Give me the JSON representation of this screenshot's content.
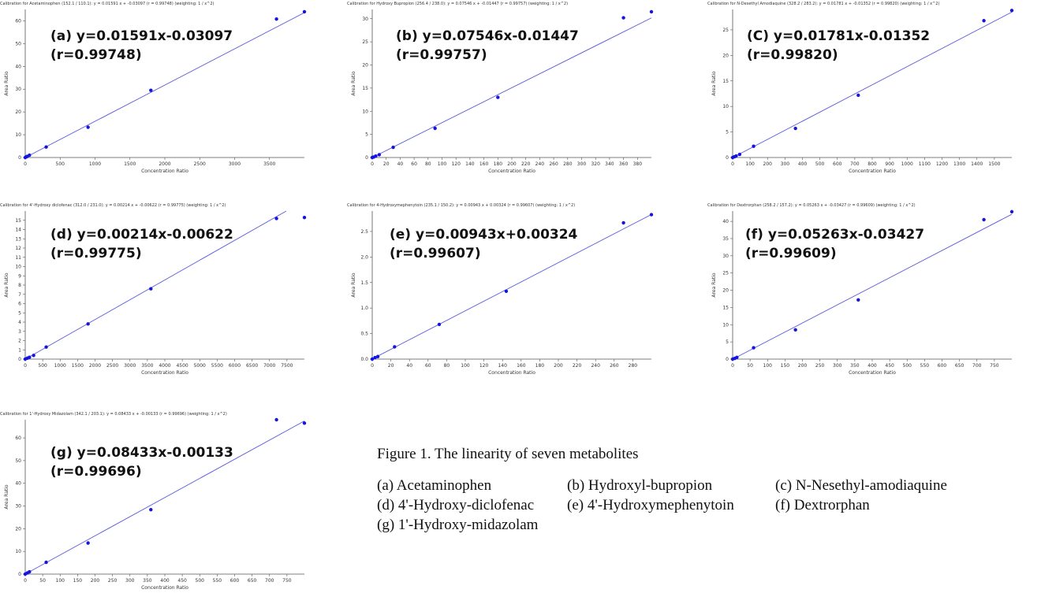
{
  "chart_data": [
    {
      "type": "scatter",
      "panel_label": "(a)",
      "caption": "Calibration for Acetaminophen (152.1 / 110.1): y = 0.01591 x + -0.03097 (r = 0.99748) (weighting: 1 / x^2)",
      "equation": "(a) y=0.01591x-0.03097",
      "r_text": "(r=0.99748)",
      "slope": 0.01591,
      "intercept": -0.03097,
      "xlabel": "Concentration Ratio",
      "ylabel": "Area Ratio",
      "xlim": [
        0,
        4000
      ],
      "ylim": [
        0,
        65
      ],
      "xticks": [
        0,
        500,
        1000,
        1500,
        2000,
        2500,
        3000,
        3500
      ],
      "yticks": [
        0,
        10,
        20,
        30,
        40,
        50,
        60
      ],
      "points": [
        [
          0,
          0
        ],
        [
          15,
          0.3
        ],
        [
          30,
          0.5
        ],
        [
          60,
          1.0
        ],
        [
          300,
          4.6
        ],
        [
          900,
          13.3
        ],
        [
          1800,
          29.5
        ],
        [
          3600,
          60.8
        ],
        [
          4000,
          64.0
        ]
      ]
    },
    {
      "type": "scatter",
      "panel_label": "(b)",
      "caption": "Calibration for Hydroxy Bupropion (256.4 / 238.0): y = 0.07546 x + -0.01447 (r = 0.99757) (weighting: 1 / x^2)",
      "equation": "(b) y=0.07546x-0.01447",
      "r_text": "(r=0.99757)",
      "slope": 0.07546,
      "intercept": -0.01447,
      "xlabel": "Concentration Ratio",
      "ylabel": "Area Ratio",
      "xlim": [
        0,
        400
      ],
      "ylim": [
        0,
        32
      ],
      "xticks": [
        0,
        20,
        40,
        60,
        80,
        100,
        120,
        140,
        160,
        180,
        200,
        220,
        240,
        260,
        280,
        300,
        320,
        340,
        360,
        380
      ],
      "yticks": [
        0,
        5,
        10,
        15,
        20,
        25,
        30
      ],
      "points": [
        [
          0,
          0
        ],
        [
          2,
          0.1
        ],
        [
          5,
          0.3
        ],
        [
          10,
          0.6
        ],
        [
          30,
          2.2
        ],
        [
          90,
          6.3
        ],
        [
          180,
          13.0
        ],
        [
          360,
          30.2
        ],
        [
          400,
          31.5
        ]
      ]
    },
    {
      "type": "scatter",
      "panel_label": "(C)",
      "caption": "Calibration for N-Desethyl Amodiaquine (328.2 / 283.2): y = 0.01781 x + -0.01352 (r = 0.99820) (weighting: 1 / x^2)",
      "equation": "(C) y=0.01781x-0.01352",
      "r_text": "(r=0.99820)",
      "slope": 0.01781,
      "intercept": -0.01352,
      "xlabel": "Concentration Ratio",
      "ylabel": "Area Ratio",
      "xlim": [
        0,
        1600
      ],
      "ylim": [
        0,
        29
      ],
      "xticks": [
        0,
        100,
        200,
        300,
        400,
        500,
        600,
        700,
        800,
        900,
        1000,
        1100,
        1200,
        1300,
        1400,
        1500
      ],
      "yticks": [
        0,
        5,
        10,
        15,
        20,
        25
      ],
      "points": [
        [
          0,
          0
        ],
        [
          10,
          0.15
        ],
        [
          20,
          0.3
        ],
        [
          40,
          0.6
        ],
        [
          120,
          2.2
        ],
        [
          360,
          5.7
        ],
        [
          720,
          12.2
        ],
        [
          1440,
          26.8
        ],
        [
          1600,
          28.8
        ]
      ]
    },
    {
      "type": "scatter",
      "panel_label": "(d)",
      "caption": "Calibration for 4'-Hydroxy diclofenac (312.0 / 231.0): y = 0.00214 x + -0.00622 (r = 0.99775) (weighting: 1 / x^2)",
      "equation": "(d) y=0.00214x-0.00622",
      "r_text": "(r=0.99775)",
      "slope": 0.00214,
      "intercept": -0.00622,
      "xlabel": "Concentration Ratio",
      "ylabel": "Area Ratio",
      "xlim": [
        0,
        8000
      ],
      "ylim": [
        0,
        16
      ],
      "xticks": [
        0,
        500,
        1000,
        1500,
        2000,
        2500,
        3000,
        3500,
        4000,
        4500,
        5000,
        5500,
        6000,
        6500,
        7000,
        7500
      ],
      "yticks": [
        0,
        1,
        2,
        3,
        4,
        5,
        6,
        7,
        8,
        9,
        10,
        11,
        12,
        13,
        14,
        15
      ],
      "points": [
        [
          0,
          0
        ],
        [
          60,
          0.1
        ],
        [
          120,
          0.2
        ],
        [
          240,
          0.4
        ],
        [
          600,
          1.3
        ],
        [
          1800,
          3.8
        ],
        [
          3600,
          7.6
        ],
        [
          7200,
          15.2
        ],
        [
          8000,
          15.3
        ]
      ]
    },
    {
      "type": "scatter",
      "panel_label": "(e)",
      "caption": "Calibration for 4-Hydroxymephenytoin (235.1 / 150.2): y = 0.00943 x + 0.00324 (r = 0.99607) (weighting: 1 / x^2)",
      "equation": "(e) y=0.00943x+0.00324",
      "r_text": "(r=0.99607)",
      "slope": 0.00943,
      "intercept": 0.00324,
      "xlabel": "Concentration Ratio",
      "ylabel": "Area Ratio",
      "xlim": [
        0,
        300
      ],
      "ylim": [
        0,
        2.9
      ],
      "xticks": [
        0,
        20,
        40,
        60,
        80,
        100,
        120,
        140,
        160,
        180,
        200,
        220,
        240,
        260,
        280
      ],
      "yticks": [
        0.0,
        0.5,
        1.0,
        1.5,
        2.0,
        2.5
      ],
      "points": [
        [
          0,
          0
        ],
        [
          3,
          0.03
        ],
        [
          6,
          0.05
        ],
        [
          24,
          0.24
        ],
        [
          72,
          0.68
        ],
        [
          144,
          1.33
        ],
        [
          270,
          2.67
        ],
        [
          300,
          2.83
        ]
      ]
    },
    {
      "type": "scatter",
      "panel_label": "(f)",
      "caption": "Calibration for Dextrorphan (258.2 / 157.2): y = 0.05263 x + -0.03427 (r = 0.99609) (weighting: 1 / x^2)",
      "equation": "(f) y=0.05263x-0.03427",
      "r_text": "(r=0.99609)",
      "slope": 0.05263,
      "intercept": -0.03427,
      "xlabel": "Concentration Ratio",
      "ylabel": "Area Ratio",
      "xlim": [
        0,
        800
      ],
      "ylim": [
        0,
        43
      ],
      "xticks": [
        0,
        50,
        100,
        150,
        200,
        250,
        300,
        350,
        400,
        450,
        500,
        550,
        600,
        650,
        700,
        750
      ],
      "yticks": [
        0,
        5,
        10,
        15,
        20,
        25,
        30,
        35,
        40
      ],
      "points": [
        [
          0,
          0
        ],
        [
          6,
          0.2
        ],
        [
          12,
          0.5
        ],
        [
          60,
          3.3
        ],
        [
          180,
          8.5
        ],
        [
          360,
          17.2
        ],
        [
          720,
          40.5
        ],
        [
          800,
          42.8
        ]
      ]
    },
    {
      "type": "scatter",
      "panel_label": "(g)",
      "caption": "Calibration for 1'-Hydroxy Midazolam (342.1 / 203.1): y = 0.08433 x + -0.00133 (r = 0.99696) (weighting: 1 / x^2)",
      "equation": "(g) y=0.08433x-0.00133",
      "r_text": "(r=0.99696)",
      "slope": 0.08433,
      "intercept": -0.00133,
      "xlabel": "Concentration Ratio",
      "ylabel": "Area Ratio",
      "xlim": [
        0,
        800
      ],
      "ylim": [
        0,
        68
      ],
      "xticks": [
        0,
        50,
        100,
        150,
        200,
        250,
        300,
        350,
        400,
        450,
        500,
        550,
        600,
        650,
        700,
        750
      ],
      "yticks": [
        0,
        10,
        20,
        30,
        40,
        50,
        60
      ],
      "points": [
        [
          0,
          0
        ],
        [
          6,
          0.5
        ],
        [
          12,
          1.0
        ],
        [
          60,
          5.2
        ],
        [
          180,
          13.7
        ],
        [
          360,
          28.4
        ],
        [
          720,
          68.0
        ],
        [
          800,
          66.5
        ]
      ]
    }
  ],
  "figure": {
    "title": "Figure 1. The linearity of seven metabolites",
    "legend": [
      [
        "(a) Acetaminophen",
        "(b) Hydroxyl-bupropion",
        "(c) N-Nesethyl-amodiaquine"
      ],
      [
        "(d) 4'-Hydroxy-diclofenac",
        "(e) 4'-Hydroxymephenytoin",
        "(f) Dextrorphan"
      ],
      [
        "(g) 1'-Hydroxy-midazolam"
      ]
    ]
  },
  "colors": {
    "line": "#5a5adc",
    "point": "#1515e0",
    "axis": "#555555",
    "text": "#111111"
  }
}
